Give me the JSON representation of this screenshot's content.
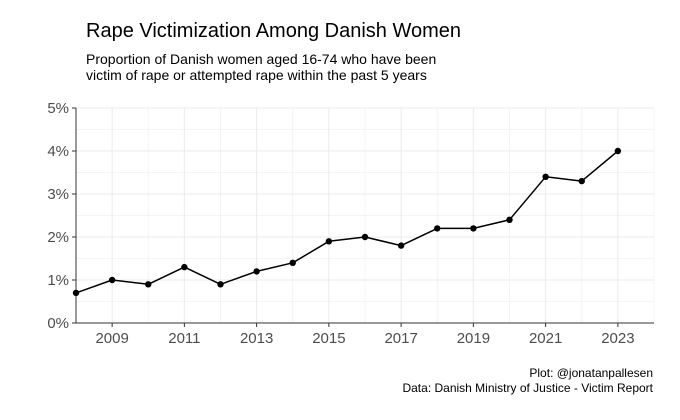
{
  "chart_data": {
    "type": "line",
    "title": "Rape Victimization Among Danish Women",
    "subtitle": "Proportion of Danish women aged 16-74 who have been\nvictim of rape or attempted rape within the past 5 years",
    "xlabel": "",
    "ylabel": "",
    "x": [
      2008,
      2009,
      2010,
      2011,
      2012,
      2013,
      2014,
      2015,
      2016,
      2017,
      2018,
      2019,
      2020,
      2021,
      2022,
      2023
    ],
    "series": [
      {
        "values": [
          0.7,
          1.0,
          0.9,
          1.3,
          0.9,
          1.2,
          1.4,
          1.9,
          2.0,
          1.8,
          2.2,
          2.2,
          2.4,
          3.4,
          3.3,
          4.0
        ]
      }
    ],
    "xlim": [
      2008,
      2024
    ],
    "ylim": [
      0,
      5
    ],
    "x_ticks": [
      "2009",
      "2011",
      "2013",
      "2015",
      "2017",
      "2019",
      "2021",
      "2023"
    ],
    "y_ticks": [
      "0%",
      "1%",
      "2%",
      "3%",
      "4%",
      "5%"
    ],
    "grid": true,
    "legend": "none",
    "line_color": "#000000",
    "grid_color": "#ebebeb"
  },
  "caption": {
    "line1": "Plot: @jonatanpallesen",
    "line2": "Data: Danish Ministry of Justice - Victim Report"
  }
}
